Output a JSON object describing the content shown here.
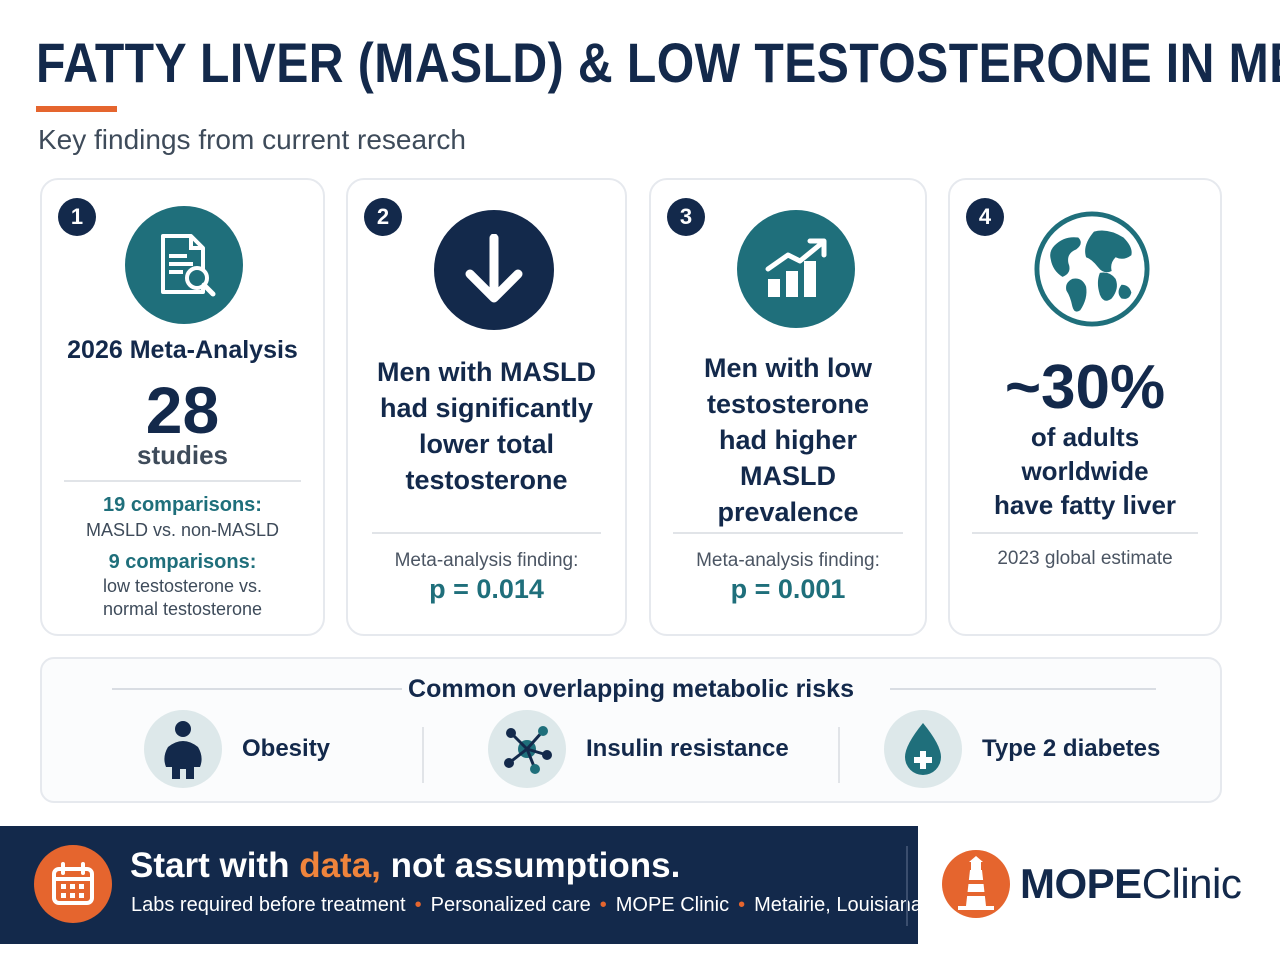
{
  "header": {
    "title": "FATTY LIVER (MASLD) & LOW TESTOSTERONE IN MEN",
    "subtitle": "Key findings from current research"
  },
  "cards": [
    {
      "number": "1",
      "icon": "document-search-icon",
      "heading": "2026 Meta-Analysis",
      "big_number": "28",
      "big_unit": "studies",
      "comparisons": [
        {
          "label": "19 comparisons:",
          "detail_lines": [
            "MASLD vs. non-MASLD"
          ]
        },
        {
          "label": "9 comparisons:",
          "detail_lines": [
            "low testosterone vs.",
            "normal testosterone"
          ]
        }
      ]
    },
    {
      "number": "2",
      "icon": "arrow-down-icon",
      "statement_lines": [
        "Men with MASLD",
        "had significantly",
        "lower total",
        "testosterone"
      ],
      "finding_label": "Meta-analysis finding:",
      "finding_value": "p = 0.014"
    },
    {
      "number": "3",
      "icon": "rising-chart-icon",
      "statement_lines": [
        "Men with low",
        "testosterone",
        "had higher",
        "MASLD",
        "prevalence"
      ],
      "finding_label": "Meta-analysis finding:",
      "finding_value": "p = 0.001"
    },
    {
      "number": "4",
      "icon": "globe-icon",
      "big_value": "~30%",
      "text_lines": [
        "of adults",
        "worldwide",
        "have fatty liver"
      ],
      "note": "2023 global estimate"
    }
  ],
  "risks": {
    "title": "Common overlapping metabolic risks",
    "items": [
      {
        "label": "Obesity",
        "icon": "obesity-person-icon"
      },
      {
        "label": "Insulin resistance",
        "icon": "insulin-molecule-icon"
      },
      {
        "label": "Type 2 diabetes",
        "icon": "blood-drop-plus-icon"
      }
    ]
  },
  "footer": {
    "headline_start": "Start with ",
    "headline_accent": "data,",
    "headline_end": " not assumptions.",
    "tags": [
      "Labs required before treatment",
      "Personalized care",
      "MOPE Clinic",
      "Metairie, Louisiana"
    ],
    "separator": "•"
  },
  "logo": {
    "bold": "MOPE",
    "light": "Clinic"
  },
  "colors": {
    "navy": "#13294b",
    "teal": "#1f6f7b",
    "orange": "#e5652e"
  }
}
